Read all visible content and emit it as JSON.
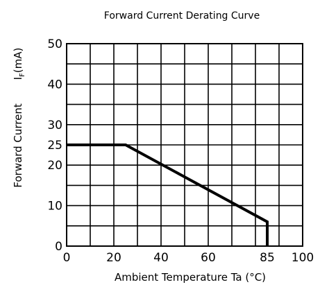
{
  "chart_data": {
    "type": "line",
    "title": "Forward Current Derating Curve",
    "xlabel": "Ambient Temperature Ta (°C)",
    "ylabel": "Forward Current",
    "ylabel_symbol": "I",
    "ylabel_subscript": "F",
    "ylabel_unit": "(mA)",
    "xlim": [
      0,
      100
    ],
    "ylim": [
      0,
      50
    ],
    "x_ticks": [
      "0",
      "20",
      "40",
      "60",
      "85",
      "100"
    ],
    "y_ticks": [
      "0",
      "10",
      "20",
      "25",
      "30",
      "40",
      "50"
    ],
    "grid": true,
    "series": [
      {
        "x": [
          0,
          25,
          85,
          85
        ],
        "y": [
          25,
          25,
          6,
          0
        ]
      }
    ]
  }
}
